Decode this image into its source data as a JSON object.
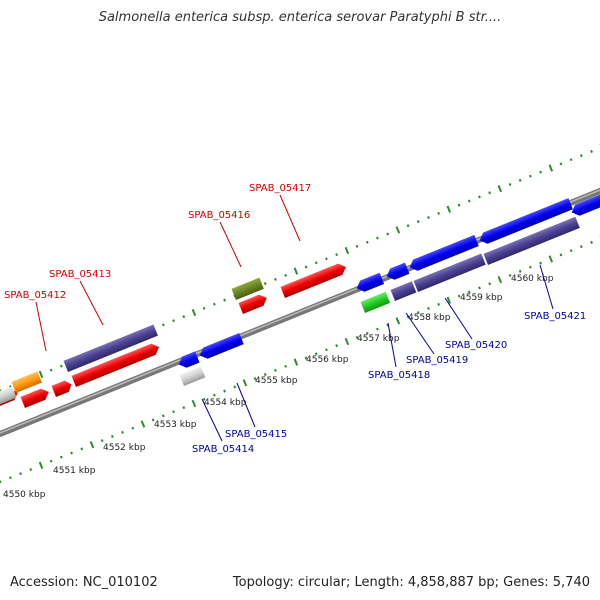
{
  "title": "Salmonella enterica subsp. enterica serovar Paratyphi B str....",
  "footer": {
    "accession": "Accession: NC_010102",
    "topology": "Topology: circular; Length: 4,858,887 bp; Genes: 5,740"
  },
  "colors": {
    "forward_label": "#d40000",
    "reverse_label": "#0000aa",
    "tick": "#2e8b2e",
    "backbone": "#888888"
  },
  "ticks": [
    "4550 kbp",
    "4551 kbp",
    "4552 kbp",
    "4553 kbp",
    "4554 kbp",
    "4555 kbp",
    "4556 kbp",
    "4557 kbp",
    "4558 kbp",
    "4559 kbp",
    "4560 kbp"
  ],
  "forward_labels": [
    "SPAB_05412",
    "SPAB_05413",
    "SPAB_05416",
    "SPAB_05417"
  ],
  "reverse_labels": [
    "SPAB_05414",
    "SPAB_05415",
    "SPAB_05418",
    "SPAB_05419",
    "SPAB_05420",
    "SPAB_05421"
  ]
}
